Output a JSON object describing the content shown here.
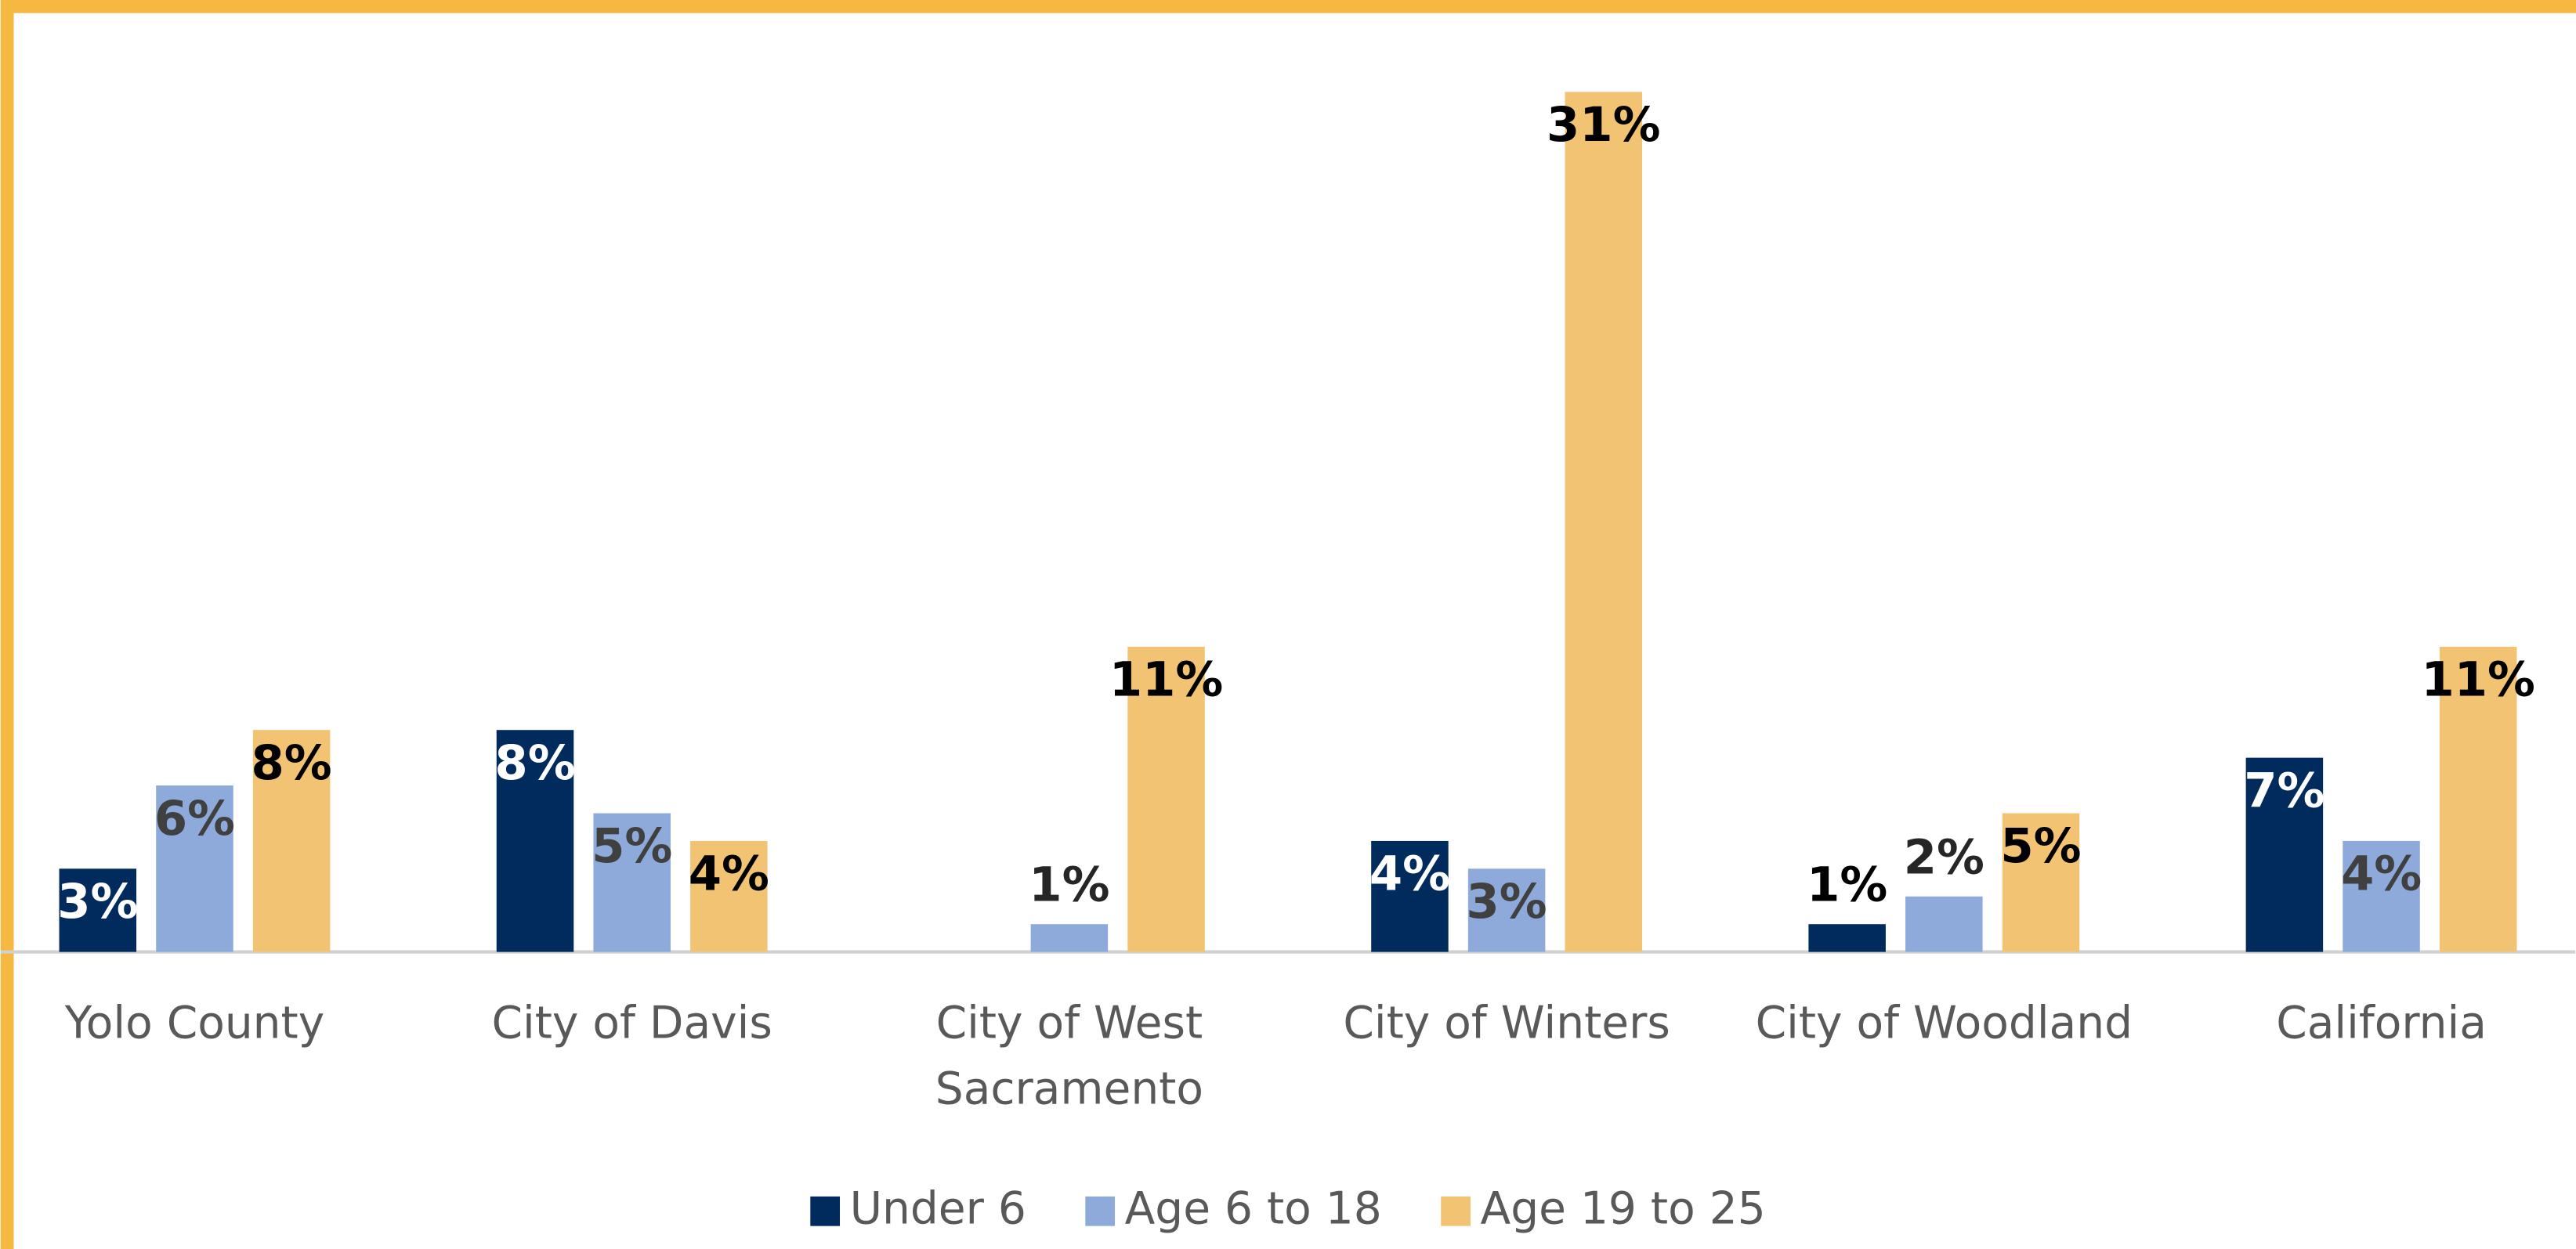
{
  "chart_data": {
    "type": "bar",
    "categories": [
      [
        "Yolo County"
      ],
      [
        "City of Davis"
      ],
      [
        "City of West",
        "Sacramento"
      ],
      [
        "City of Winters"
      ],
      [
        "City of Woodland"
      ],
      [
        "California"
      ]
    ],
    "series": [
      {
        "name": "Under 6",
        "color": "#002b5c",
        "values": [
          3,
          8,
          null,
          4,
          1,
          7
        ],
        "value_labels": [
          "3%",
          "8%",
          null,
          "4%",
          "1%",
          "7%"
        ]
      },
      {
        "name": "Age 6 to 18",
        "color": "#8eaadb",
        "values": [
          6,
          5,
          1,
          3,
          2,
          4
        ],
        "value_labels": [
          "6%",
          "5%",
          "1%",
          "3%",
          "2%",
          "4%"
        ]
      },
      {
        "name": "Age 19 to 25",
        "color": "#f2c372",
        "values": [
          8,
          4,
          11,
          31,
          5,
          11
        ],
        "value_labels": [
          "8%",
          "4%",
          "11%",
          "31%",
          "5%",
          "11%"
        ]
      }
    ],
    "ylim": [
      0,
      31
    ]
  }
}
